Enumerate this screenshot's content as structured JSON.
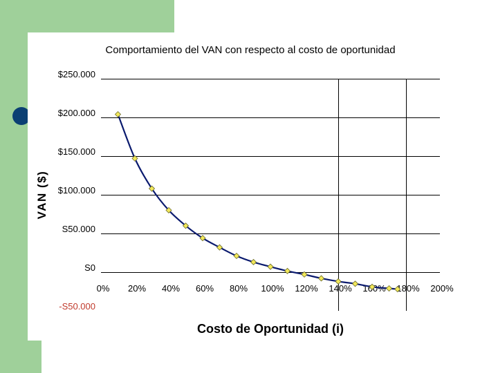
{
  "chart_data": {
    "type": "line",
    "title": "Comportamiento del VAN con respecto al costo de oportunidad",
    "xlabel": "Costo de Oportunidad (i)",
    "ylabel": "VAN ($)",
    "x_tick_labels": [
      "0%",
      "20%",
      "40%",
      "60%",
      "80%",
      "100%",
      "120%",
      "140%",
      "160%",
      "180%",
      "200%"
    ],
    "y_tick_labels": [
      "$250.000",
      "$200.000",
      "$150.000",
      "$100.000",
      "S50.000",
      "S0",
      "-S50.000"
    ],
    "xlim": [
      0,
      2.0
    ],
    "ylim": [
      -50000,
      250000
    ],
    "grid": true,
    "vertical_reference_lines_x": [
      1.4,
      1.8
    ],
    "series": [
      {
        "x": [
          0.1,
          0.2,
          0.3,
          0.4,
          0.5,
          0.6,
          0.7,
          0.8,
          0.9,
          1.0,
          1.1,
          1.2,
          1.3,
          1.4,
          1.5,
          1.6,
          1.7,
          1.75
        ],
        "y": [
          204000,
          147000,
          108000,
          80000,
          60000,
          44000,
          32000,
          21000,
          13000,
          7000,
          1500,
          -3000,
          -8000,
          -12000,
          -15000,
          -19000,
          -21000,
          -22000
        ]
      }
    ],
    "colors": {
      "line": "#0a1a6e",
      "marker_fill": "#f2e85a",
      "marker_stroke": "#6b6b2a",
      "grid": "#000000",
      "negative_label": "#c0392b"
    }
  }
}
